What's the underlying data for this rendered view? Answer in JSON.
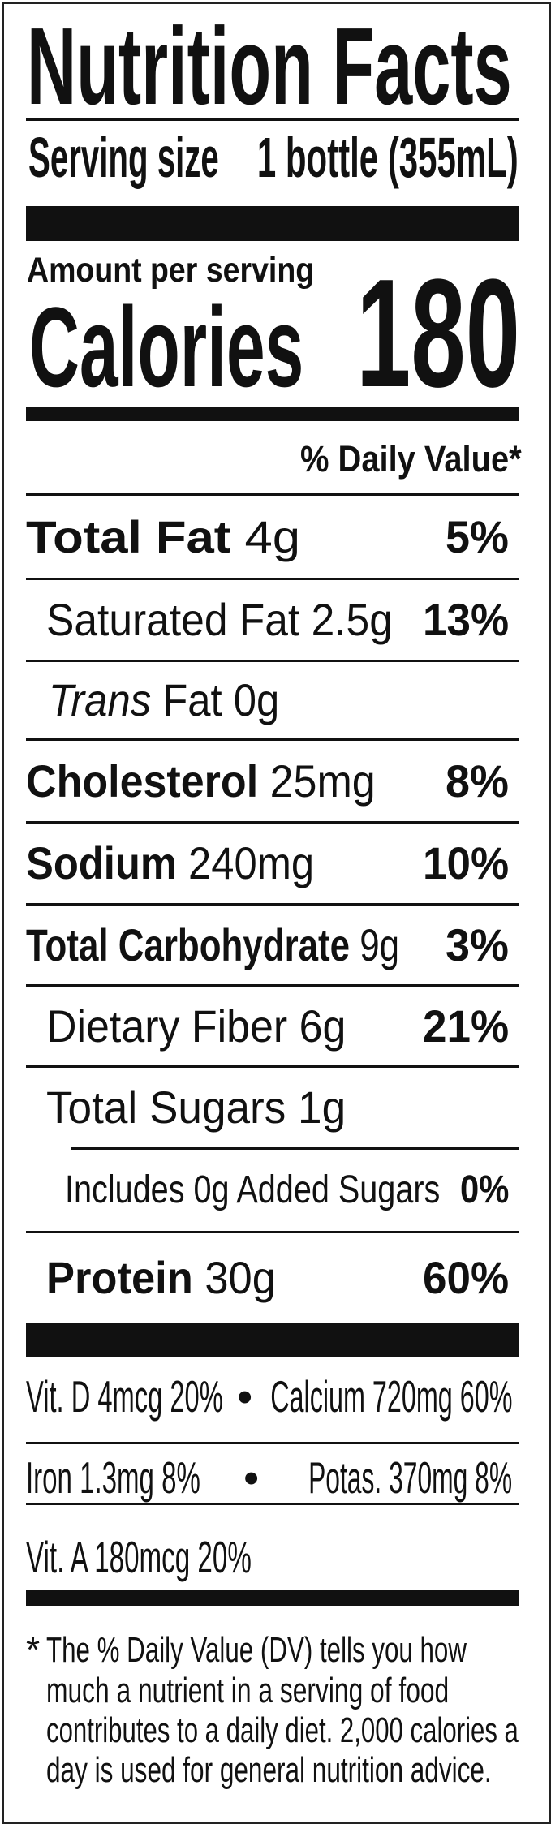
{
  "title": "Nutrition Facts",
  "serving": {
    "label": "Serving size",
    "value": "1 bottle (355mL)"
  },
  "amount_per_serving": "Amount per serving",
  "calories": {
    "label": "Calories",
    "value": "180"
  },
  "daily_value_header": "% Daily Value*",
  "nutrients": [
    {
      "name": "Total Fat",
      "amount": "4g",
      "dv": "5%"
    },
    {
      "name": "Saturated Fat",
      "amount": "2.5g",
      "dv": "13%"
    },
    {
      "name": "Trans",
      "name_suffix": "Fat",
      "amount": "0g"
    },
    {
      "name": "Cholesterol",
      "amount": "25mg",
      "dv": "8%"
    },
    {
      "name": "Sodium",
      "amount": "240mg",
      "dv": "10%"
    },
    {
      "name": "Total Carbohydrate",
      "amount": "9g",
      "dv": "3%"
    },
    {
      "name": "Dietary Fiber",
      "amount": "6g",
      "dv": "21%"
    },
    {
      "name": "Total Sugars",
      "amount": "1g"
    },
    {
      "name": "Includes 0g Added Sugars",
      "dv": "0%"
    },
    {
      "name": "Protein",
      "amount": "30g",
      "dv": "60%"
    }
  ],
  "vitamins": {
    "vit_d": "Vit. D 4mcg 20%",
    "calcium": "Calcium 720mg 60%",
    "iron": "Iron 1.3mg 8%",
    "potassium": "Potas. 370mg 8%",
    "vit_a": "Vit. A 180mcg 20%",
    "bullet": "•"
  },
  "footnote": {
    "asterisk": "*",
    "lines": [
      "The % Daily Value (DV) tells you how",
      "much a nutrient in a serving of food",
      "contributes to a daily diet. 2,000 calories a",
      "day is used for general nutrition advice."
    ]
  },
  "colors": {
    "ink": "#111111",
    "background": "#ffffff"
  }
}
